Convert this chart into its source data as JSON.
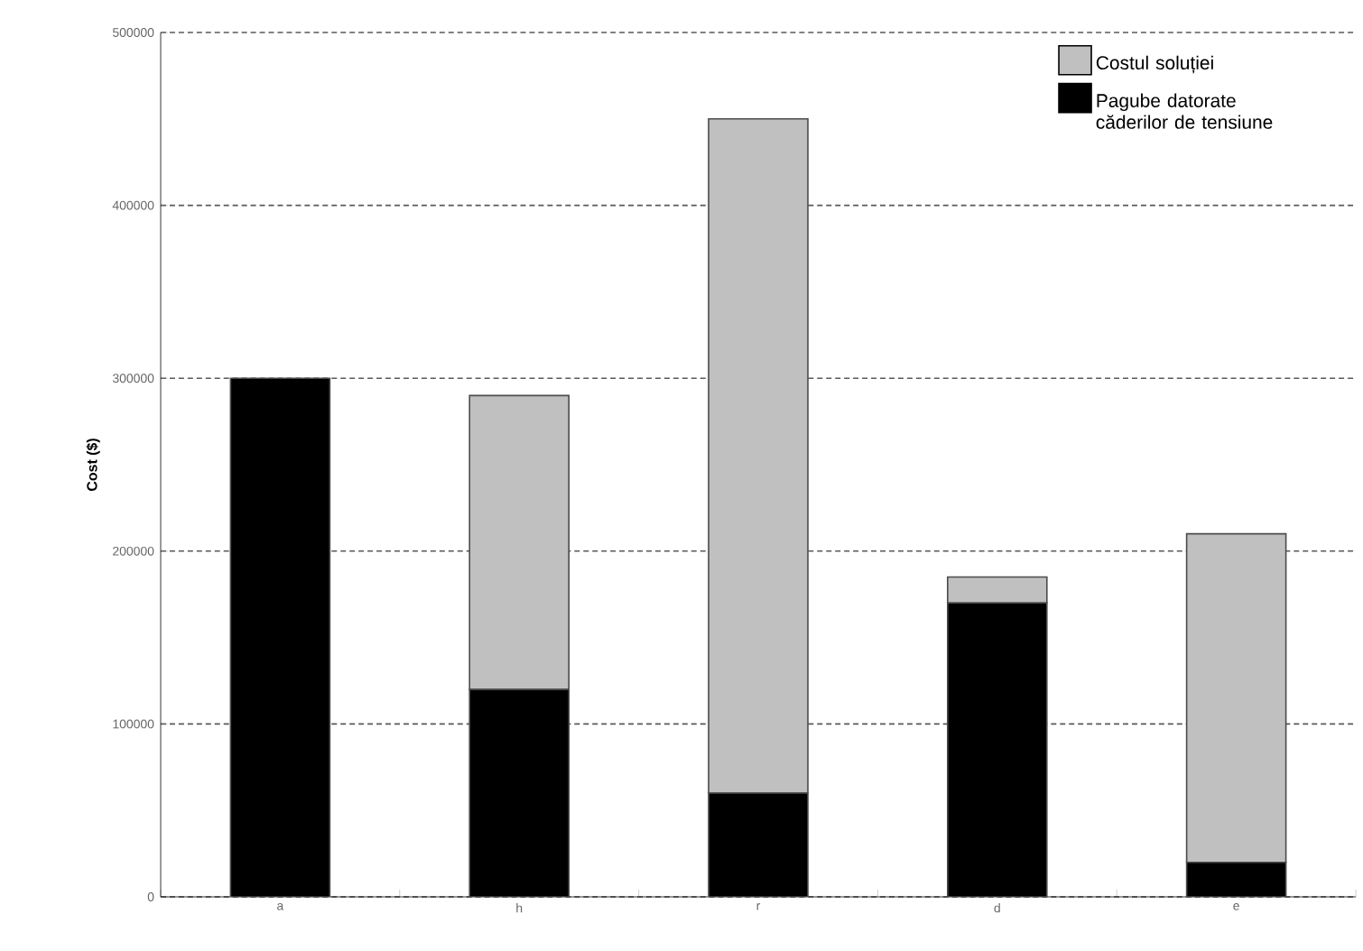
{
  "chart_data": {
    "type": "bar",
    "stacked": true,
    "ylabel": "Cost ($)",
    "categories": [
      "a",
      "h",
      "r",
      "d",
      "e"
    ],
    "series": [
      {
        "name": "Pagube datorate căderilor de tensiune",
        "color": "#000000",
        "values": [
          300000,
          120000,
          60000,
          170000,
          20000
        ]
      },
      {
        "name": "Costul soluției",
        "color": "#c0c0c0",
        "values": [
          0,
          170000,
          390000,
          15000,
          190000
        ]
      }
    ],
    "ylim": [
      0,
      500000
    ],
    "yticks": [
      0,
      100000,
      200000,
      300000,
      400000,
      500000
    ],
    "grid": "y",
    "legend": "top right"
  }
}
